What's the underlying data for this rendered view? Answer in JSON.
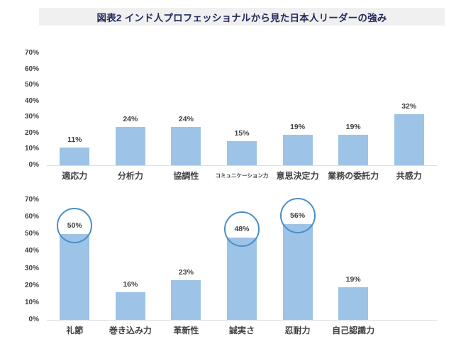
{
  "title": "図表2 インド人プロフェッショナルから見た日本人リーダーの強み",
  "colors": {
    "bar": "#9DC3E6",
    "highlight_circle": "#4A8EC9",
    "label_text": "#404040",
    "title_text": "#22295A",
    "title_bg": "#F0F0F0",
    "baseline": "#DEDEDE"
  },
  "chart_data": [
    {
      "type": "bar",
      "position": "upper",
      "categories": [
        "適応力",
        "分析力",
        "協調性",
        "コミュニケーション力",
        "意思決定力",
        "業務の委託力",
        "共感力"
      ],
      "values": [
        11,
        24,
        24,
        15,
        19,
        19,
        32
      ],
      "value_labels": [
        "11%",
        "24%",
        "24%",
        "15%",
        "19%",
        "19%",
        "32%"
      ],
      "circled_indices": [],
      "ylim": [
        0,
        70
      ],
      "ytick_step": 10,
      "ytick_labels": [
        "0%",
        "10%",
        "20%",
        "30%",
        "40%",
        "50%",
        "60%",
        "70%"
      ],
      "grid": false,
      "legend": "none"
    },
    {
      "type": "bar",
      "position": "lower",
      "categories": [
        "礼節",
        "巻き込み力",
        "革新性",
        "誠実さ",
        "忍耐力",
        "自己認識力"
      ],
      "values": [
        50,
        16,
        23,
        48,
        56,
        19
      ],
      "value_labels": [
        "50%",
        "16%",
        "23%",
        "48%",
        "56%",
        "19%"
      ],
      "circled_indices": [
        0,
        3,
        4
      ],
      "ylim": [
        0,
        70
      ],
      "ytick_step": 10,
      "ytick_labels": [
        "0%",
        "10%",
        "20%",
        "30%",
        "40%",
        "50%",
        "60%",
        "70%"
      ],
      "grid": false,
      "legend": "none"
    }
  ]
}
